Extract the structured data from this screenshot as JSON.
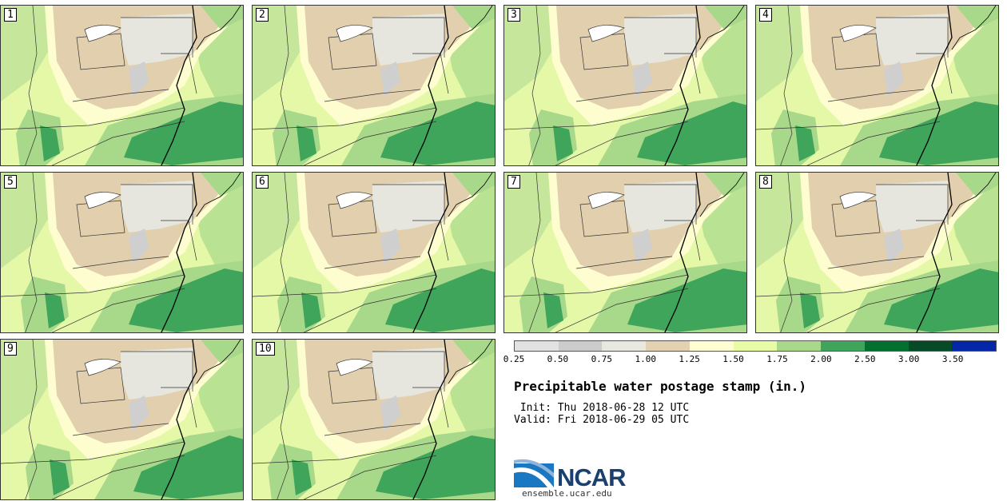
{
  "panels": [
    {
      "label": "1"
    },
    {
      "label": "2"
    },
    {
      "label": "3"
    },
    {
      "label": "4"
    },
    {
      "label": "5"
    },
    {
      "label": "6"
    },
    {
      "label": "7"
    },
    {
      "label": "8"
    },
    {
      "label": "9"
    },
    {
      "label": "10"
    }
  ],
  "legend": {
    "colors": [
      "#e2e2e2",
      "#cccccc",
      "#e8e8e0",
      "#e3d2b1",
      "#fffed2",
      "#e7fca5",
      "#a9d88a",
      "#3ea55a",
      "#04702f",
      "#064a28",
      "#0626a8"
    ],
    "ticks": [
      "0.25",
      "0.50",
      "0.75",
      "1.00",
      "1.25",
      "1.50",
      "1.75",
      "2.00",
      "2.50",
      "3.00",
      "3.50"
    ]
  },
  "title": "Precipitable water postage stamp (in.)",
  "init": " Init: Thu 2018-06-28 12 UTC",
  "valid": "Valid: Fri 2018-06-29 05 UTC",
  "logo": {
    "text": "NCAR",
    "url": "ensemble.ucar.edu"
  }
}
